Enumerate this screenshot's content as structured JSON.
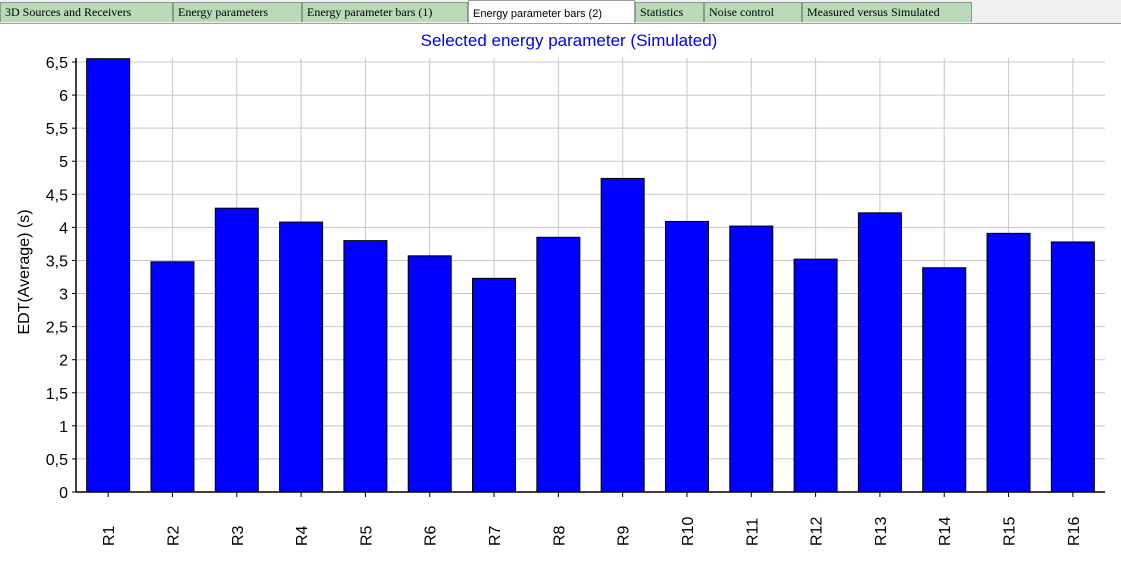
{
  "tabs": [
    {
      "label": "3D Sources and Receivers",
      "active": false
    },
    {
      "label": "Energy parameters",
      "active": false
    },
    {
      "label": "Energy parameter bars (1)",
      "active": false
    },
    {
      "label": "Energy parameter bars (2)",
      "active": true
    },
    {
      "label": "Statistics",
      "active": false
    },
    {
      "label": "Noise control",
      "active": false
    },
    {
      "label": "Measured versus Simulated",
      "active": false
    }
  ],
  "chart_data": {
    "type": "bar",
    "title": "Selected energy parameter (Simulated)",
    "xlabel": "",
    "ylabel": "EDT(Average) (s)",
    "categories": [
      "R1",
      "R2",
      "R3",
      "R4",
      "R5",
      "R6",
      "R7",
      "R8",
      "R9",
      "R10",
      "R11",
      "R12",
      "R13",
      "R14",
      "R15",
      "R16"
    ],
    "values": [
      6.55,
      3.48,
      4.29,
      4.08,
      3.8,
      3.57,
      3.23,
      3.85,
      4.74,
      4.09,
      4.02,
      3.52,
      4.22,
      3.39,
      3.91,
      3.78
    ],
    "ylim": [
      0,
      6.5
    ],
    "yticks": [
      "0",
      "0,5",
      "1",
      "1,5",
      "2",
      "2,5",
      "3",
      "3,5",
      "4",
      "4,5",
      "5",
      "5,5",
      "6",
      "6,5"
    ],
    "grid": true,
    "colors": {
      "bar": "#0000ff",
      "bar_edge": "#000000",
      "title": "#0000ff",
      "grid": "#c8c8c8"
    }
  }
}
